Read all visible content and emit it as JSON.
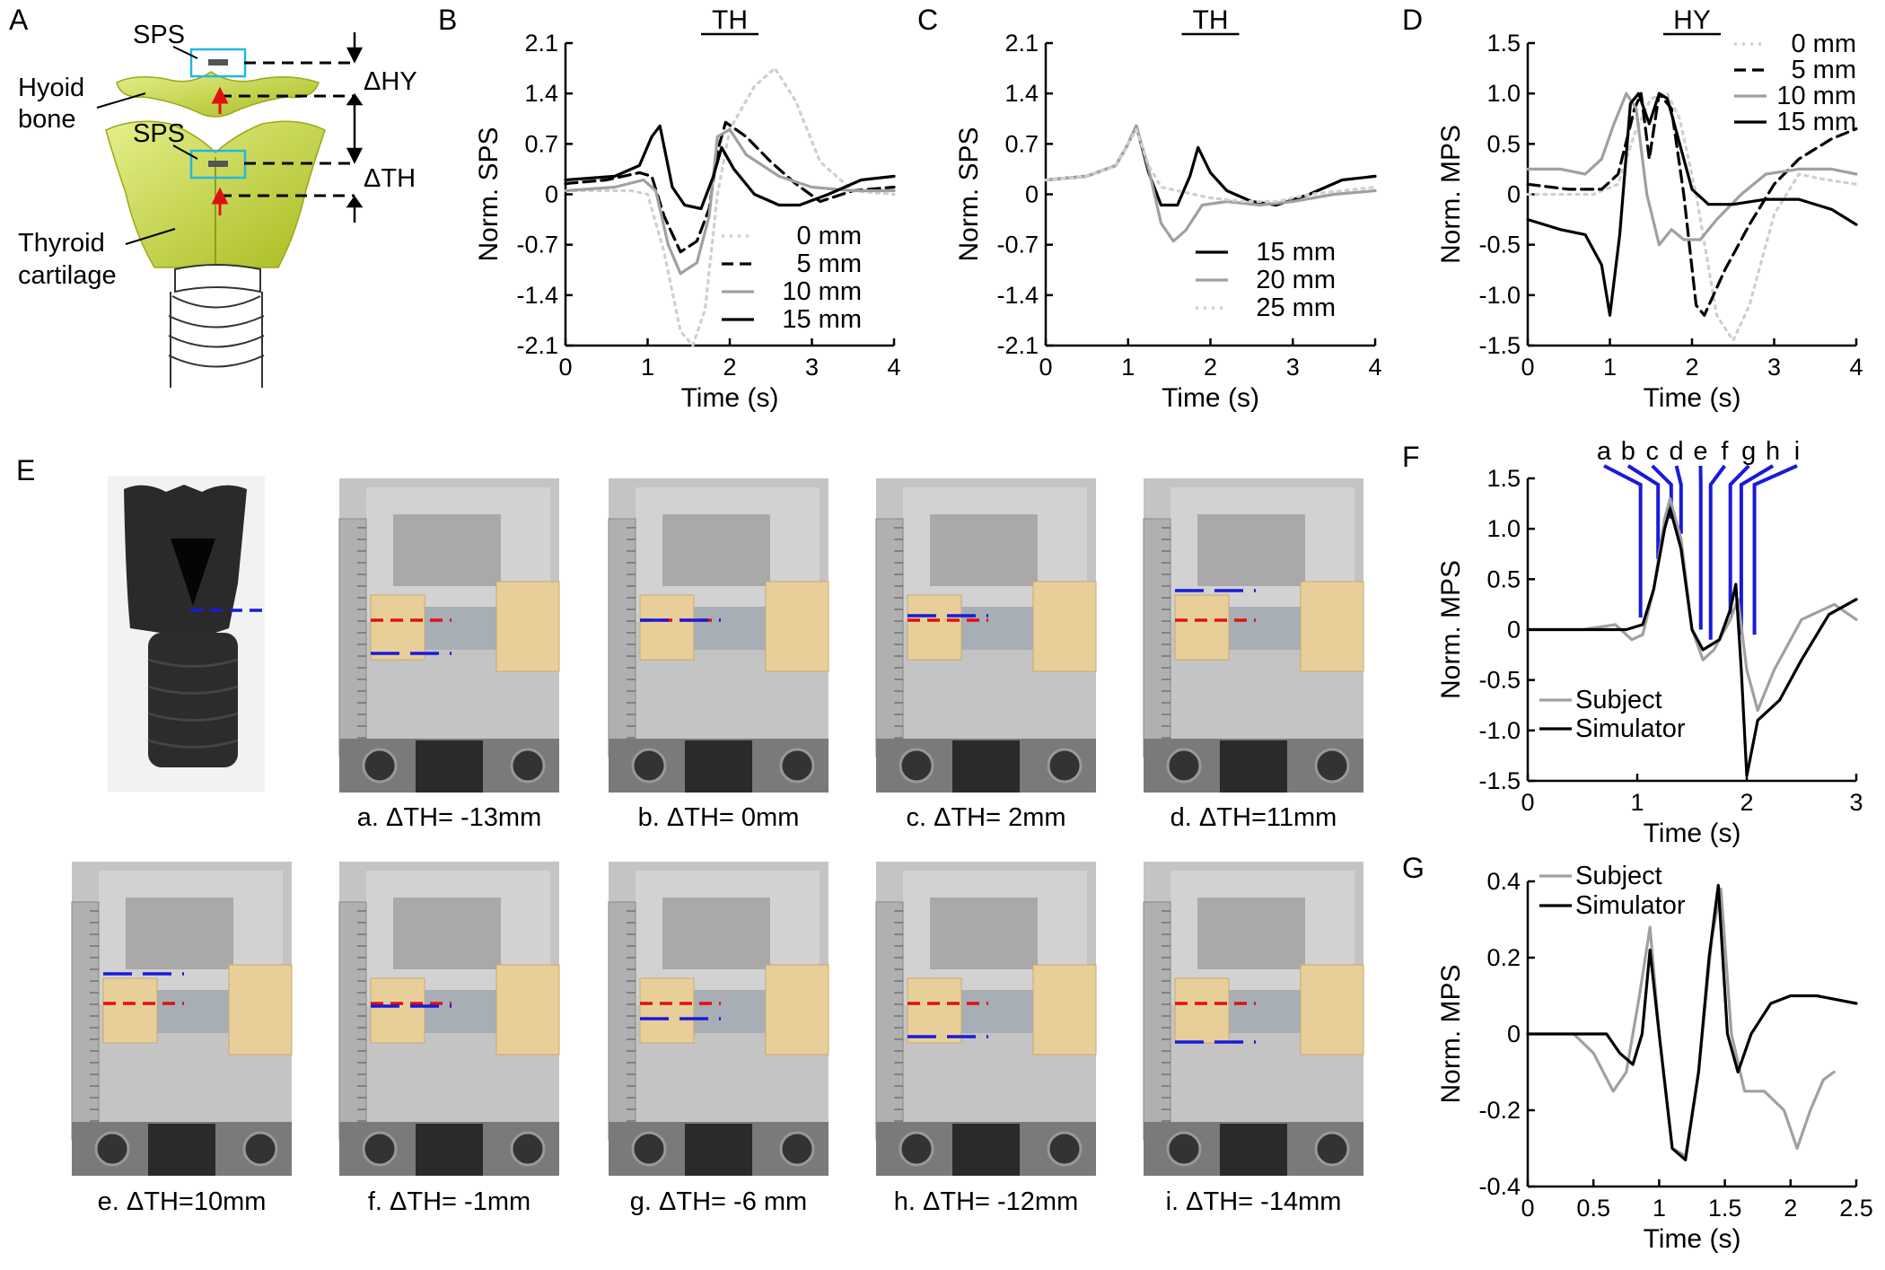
{
  "panels": {
    "A": {
      "letter": "A",
      "labels": {
        "sps_top": "SPS",
        "sps_mid": "SPS",
        "hyoid": [
          "Hyoid",
          "bone"
        ],
        "thyroid": [
          "Thyroid",
          "cartilage"
        ],
        "d_hy": "ΔHY",
        "d_th": "ΔTH"
      }
    },
    "B": {
      "letter": "B"
    },
    "C": {
      "letter": "C"
    },
    "D": {
      "letter": "D"
    },
    "E": {
      "letter": "E",
      "captions": [
        "a. ΔTH= -13mm",
        "b. ΔTH= 0mm",
        "c. ΔTH= 2mm",
        "d. ΔTH=11mm",
        "e. ΔTH=10mm",
        "f. ΔTH= -1mm",
        "g. ΔTH= -6 mm",
        "h. ΔTH= -12mm",
        "i. ΔTH= -14mm"
      ]
    },
    "F": {
      "letter": "F",
      "markers": [
        "a",
        "b",
        "c",
        "d",
        "e",
        "f",
        "g",
        "h",
        "i"
      ]
    },
    "G": {
      "letter": "G"
    }
  },
  "colors": {
    "red_line": "#e01010",
    "blue_line": "#1a1adc",
    "gray": "#a0a0a0",
    "lightgray": "#cfcfcf",
    "black": "#000000",
    "yellow": "#c8d640",
    "cyan": "#22b8e0"
  },
  "chart_data": [
    {
      "id": "B",
      "type": "line",
      "title": "TH",
      "xlabel": "Time (s)",
      "ylabel": "Norm. SPS",
      "xlim": [
        0,
        4
      ],
      "ylim": [
        -2.1,
        2.1
      ],
      "xticks": [
        0,
        1,
        2,
        3,
        4
      ],
      "yticks": [
        2.1,
        1.4,
        0.7,
        0,
        -0.7,
        -1.4,
        -2.1
      ],
      "xtick_labels": [
        "0",
        "1",
        "2",
        "3",
        "4"
      ],
      "ytick_labels": [
        "2.1",
        "1.4",
        "0.7",
        "0",
        "-0.7",
        "-1.4",
        "-2.1"
      ],
      "legend": "bottom-right",
      "series": [
        {
          "name": "0 mm",
          "style": "dotted",
          "color": "#cfcfcf",
          "x": [
            0,
            0.8,
            1.0,
            1.2,
            1.4,
            1.55,
            1.7,
            1.85,
            2.0,
            2.3,
            2.55,
            2.8,
            3.1,
            3.5,
            4.0
          ],
          "y": [
            0.05,
            0.05,
            0.0,
            -0.8,
            -1.9,
            -2.1,
            -1.6,
            0.0,
            0.9,
            1.5,
            1.75,
            1.3,
            0.45,
            0.05,
            0.0
          ]
        },
        {
          "name": "5 mm",
          "style": "dashed",
          "color": "#000000",
          "x": [
            0,
            0.5,
            0.9,
            1.05,
            1.2,
            1.4,
            1.6,
            1.75,
            1.85,
            1.95,
            2.2,
            2.5,
            2.8,
            3.1,
            3.5,
            4.0
          ],
          "y": [
            0.15,
            0.2,
            0.3,
            0.25,
            -0.3,
            -0.8,
            -0.65,
            -0.2,
            0.6,
            1.0,
            0.8,
            0.45,
            0.15,
            -0.1,
            0.05,
            0.1
          ]
        },
        {
          "name": "10 mm",
          "style": "solid",
          "color": "#a0a0a0",
          "x": [
            0,
            0.6,
            0.95,
            1.1,
            1.25,
            1.4,
            1.6,
            1.75,
            1.85,
            2.0,
            2.2,
            2.6,
            3.0,
            3.5,
            4.0
          ],
          "y": [
            0.05,
            0.1,
            0.2,
            0.05,
            -0.7,
            -1.1,
            -0.95,
            -0.3,
            0.8,
            0.9,
            0.55,
            0.25,
            0.1,
            0.05,
            0.05
          ]
        },
        {
          "name": "15 mm",
          "style": "solid",
          "color": "#000000",
          "x": [
            0,
            0.6,
            0.9,
            1.05,
            1.15,
            1.3,
            1.45,
            1.65,
            1.8,
            1.9,
            2.05,
            2.3,
            2.6,
            2.85,
            3.2,
            3.6,
            4.0
          ],
          "y": [
            0.2,
            0.25,
            0.4,
            0.8,
            0.95,
            0.1,
            -0.15,
            -0.2,
            0.25,
            0.65,
            0.35,
            0.0,
            -0.15,
            -0.15,
            0.0,
            0.2,
            0.25
          ]
        }
      ]
    },
    {
      "id": "C",
      "type": "line",
      "title": "TH",
      "xlabel": "Time (s)",
      "ylabel": "Norm. SPS",
      "xlim": [
        0,
        4
      ],
      "ylim": [
        -2.1,
        2.1
      ],
      "xticks": [
        0,
        1,
        2,
        3,
        4
      ],
      "yticks": [
        2.1,
        1.4,
        0.7,
        0,
        -0.7,
        -1.4,
        -2.1
      ],
      "xtick_labels": [
        "0",
        "1",
        "2",
        "3",
        "4"
      ],
      "ytick_labels": [
        "2.1",
        "1.4",
        "0.7",
        "0",
        "-0.7",
        "-1.4",
        "-2.1"
      ],
      "legend": "bottom-right",
      "series": [
        {
          "name": "15 mm",
          "style": "solid",
          "color": "#000000",
          "x": [
            0,
            0.5,
            0.85,
            1.0,
            1.1,
            1.25,
            1.4,
            1.6,
            1.75,
            1.85,
            2.0,
            2.2,
            2.5,
            2.8,
            3.2,
            3.6,
            4.0
          ],
          "y": [
            0.2,
            0.25,
            0.4,
            0.7,
            0.95,
            0.3,
            -0.15,
            -0.15,
            0.25,
            0.65,
            0.3,
            0.05,
            -0.1,
            -0.15,
            0.0,
            0.2,
            0.25
          ]
        },
        {
          "name": "20 mm",
          "style": "solid",
          "color": "#a0a0a0",
          "x": [
            0,
            0.5,
            0.85,
            1.0,
            1.1,
            1.25,
            1.4,
            1.55,
            1.7,
            1.9,
            2.2,
            2.6,
            3.0,
            3.5,
            4.0
          ],
          "y": [
            0.2,
            0.25,
            0.4,
            0.7,
            0.95,
            0.35,
            -0.4,
            -0.65,
            -0.5,
            -0.15,
            -0.1,
            -0.15,
            -0.1,
            0.0,
            0.05
          ]
        },
        {
          "name": "25 mm",
          "style": "dotted",
          "color": "#cfcfcf",
          "x": [
            0,
            0.5,
            0.85,
            1.0,
            1.1,
            1.25,
            1.4,
            1.6,
            1.8,
            2.0,
            2.4,
            2.8,
            3.2,
            3.6,
            4.0
          ],
          "y": [
            0.2,
            0.25,
            0.4,
            0.7,
            0.9,
            0.4,
            0.1,
            0.05,
            0.0,
            -0.05,
            -0.1,
            -0.1,
            0.0,
            0.05,
            0.1
          ]
        }
      ]
    },
    {
      "id": "D",
      "type": "line",
      "title": "HY",
      "xlabel": "Time (s)",
      "ylabel": "Norm. MPS",
      "xlim": [
        0,
        4
      ],
      "ylim": [
        -1.5,
        1.5
      ],
      "xticks": [
        0,
        1,
        2,
        3,
        4
      ],
      "yticks": [
        1.5,
        1.0,
        0.5,
        0,
        -0.5,
        -1.0,
        -1.5
      ],
      "xtick_labels": [
        "0",
        "1",
        "2",
        "3",
        "4"
      ],
      "ytick_labels": [
        "1.5",
        "1.0",
        "0.5",
        "0",
        "-0.5",
        "-1.0",
        "-1.5"
      ],
      "legend": "top-right",
      "series": [
        {
          "name": "0 mm",
          "style": "dotted",
          "color": "#cfcfcf",
          "x": [
            0,
            0.8,
            1.1,
            1.3,
            1.5,
            1.7,
            1.85,
            2.05,
            2.3,
            2.5,
            2.7,
            3.0,
            3.3,
            3.6,
            4.0
          ],
          "y": [
            0.0,
            0.0,
            0.1,
            0.6,
            0.95,
            1.0,
            0.75,
            0.0,
            -1.2,
            -1.45,
            -1.1,
            -0.2,
            0.2,
            0.15,
            0.1
          ]
        },
        {
          "name": "5 mm",
          "style": "dashed",
          "color": "#000000",
          "x": [
            0,
            0.5,
            0.9,
            1.1,
            1.3,
            1.38,
            1.48,
            1.6,
            1.75,
            1.9,
            2.05,
            2.15,
            2.4,
            2.7,
            3.0,
            3.3,
            3.7,
            4.0
          ],
          "y": [
            0.1,
            0.05,
            0.05,
            0.2,
            0.85,
            1.0,
            0.35,
            1.0,
            0.85,
            0.0,
            -1.1,
            -1.2,
            -0.75,
            -0.3,
            0.1,
            0.35,
            0.55,
            0.65
          ]
        },
        {
          "name": "10 mm",
          "style": "solid",
          "color": "#a0a0a0",
          "x": [
            0,
            0.4,
            0.7,
            0.9,
            1.05,
            1.2,
            1.32,
            1.45,
            1.6,
            1.75,
            1.9,
            2.1,
            2.3,
            2.6,
            2.9,
            3.3,
            3.7,
            4.0
          ],
          "y": [
            0.25,
            0.25,
            0.2,
            0.35,
            0.7,
            1.0,
            0.85,
            0.0,
            -0.5,
            -0.35,
            -0.45,
            -0.45,
            -0.25,
            0.0,
            0.2,
            0.25,
            0.25,
            0.2
          ]
        },
        {
          "name": "15 mm",
          "style": "solid",
          "color": "#000000",
          "x": [
            0,
            0.4,
            0.7,
            0.9,
            1.0,
            1.12,
            1.25,
            1.35,
            1.48,
            1.6,
            1.7,
            1.85,
            2.0,
            2.2,
            2.5,
            2.9,
            3.3,
            3.7,
            4.0
          ],
          "y": [
            -0.25,
            -0.35,
            -0.4,
            -0.7,
            -1.2,
            -0.4,
            0.9,
            1.0,
            0.7,
            1.0,
            0.95,
            0.5,
            0.05,
            -0.1,
            -0.1,
            -0.05,
            -0.05,
            -0.15,
            -0.3
          ]
        }
      ]
    },
    {
      "id": "F",
      "type": "line",
      "title": "",
      "xlabel": "Time (s)",
      "ylabel": "Norm. MPS",
      "xlim": [
        0,
        3
      ],
      "ylim": [
        -1.5,
        1.5
      ],
      "xticks": [
        0,
        1,
        2,
        3
      ],
      "yticks": [
        1.5,
        1.0,
        0.5,
        0,
        -0.5,
        -1.0,
        -1.5
      ],
      "xtick_labels": [
        "0",
        "1",
        "2",
        "3"
      ],
      "ytick_labels": [
        "1.5",
        "1.0",
        "0.5",
        "0",
        "-0.5",
        "-1.0",
        "-1.5"
      ],
      "legend": "bottom-left",
      "annotation_labels": [
        "a",
        "b",
        "c",
        "d",
        "e",
        "f",
        "g",
        "h",
        "i"
      ],
      "annotation_x": [
        1.03,
        1.19,
        1.31,
        1.4,
        1.58,
        1.67,
        1.85,
        1.95,
        2.07
      ],
      "annotation_y": [
        0.12,
        0.7,
        1.1,
        0.95,
        0.0,
        -0.1,
        0.15,
        -0.05,
        -0.05
      ],
      "series": [
        {
          "name": "Subject",
          "style": "solid",
          "color": "#a0a0a0",
          "x": [
            0,
            0.5,
            0.8,
            0.95,
            1.05,
            1.15,
            1.25,
            1.3,
            1.4,
            1.5,
            1.6,
            1.7,
            1.85,
            1.92,
            2.0,
            2.1,
            2.25,
            2.5,
            2.8,
            3.0
          ],
          "y": [
            0.0,
            0.0,
            0.05,
            -0.1,
            -0.05,
            0.4,
            1.1,
            1.3,
            0.9,
            0.0,
            -0.3,
            -0.2,
            0.1,
            0.3,
            -0.4,
            -0.8,
            -0.4,
            0.1,
            0.25,
            0.1
          ]
        },
        {
          "name": "Simulator",
          "style": "solid",
          "color": "#000000",
          "x": [
            0,
            0.5,
            0.9,
            1.05,
            1.15,
            1.25,
            1.3,
            1.4,
            1.5,
            1.6,
            1.75,
            1.85,
            1.9,
            1.95,
            2.0,
            2.1,
            2.3,
            2.5,
            2.75,
            3.0
          ],
          "y": [
            0.0,
            0.0,
            0.0,
            0.05,
            0.4,
            1.0,
            1.2,
            0.8,
            0.0,
            -0.2,
            -0.1,
            0.2,
            0.45,
            -0.4,
            -1.45,
            -0.9,
            -0.7,
            -0.3,
            0.15,
            0.3
          ]
        }
      ]
    },
    {
      "id": "G",
      "type": "line",
      "title": "",
      "xlabel": "Time (s)",
      "ylabel": "Norm. MPS",
      "xlim": [
        0,
        2.5
      ],
      "ylim": [
        -0.4,
        0.4
      ],
      "xticks": [
        0,
        0.5,
        1,
        1.5,
        2,
        2.5
      ],
      "yticks": [
        0.4,
        0.2,
        0,
        -0.2,
        -0.4
      ],
      "xtick_labels": [
        "0",
        "0.5",
        "1",
        "1.5",
        "2",
        "2.5"
      ],
      "ytick_labels": [
        "0.4",
        "0.2",
        "0",
        "-0.2",
        "-0.4"
      ],
      "legend": "top-left",
      "series": [
        {
          "name": "Subject",
          "style": "solid",
          "color": "#a0a0a0",
          "x": [
            0.35,
            0.5,
            0.65,
            0.75,
            0.85,
            0.93,
            1.0,
            1.1,
            1.2,
            1.3,
            1.4,
            1.47,
            1.55,
            1.65,
            1.8,
            1.95,
            2.05,
            2.15,
            2.25,
            2.33
          ],
          "y": [
            0.0,
            -0.05,
            -0.15,
            -0.1,
            0.1,
            0.28,
            0.0,
            -0.3,
            -0.32,
            -0.1,
            0.25,
            0.38,
            0.0,
            -0.15,
            -0.15,
            -0.2,
            -0.3,
            -0.2,
            -0.12,
            -0.1
          ]
        },
        {
          "name": "Simulator",
          "style": "solid",
          "color": "#000000",
          "x": [
            0,
            0.3,
            0.5,
            0.6,
            0.7,
            0.8,
            0.87,
            0.93,
            1.0,
            1.1,
            1.2,
            1.3,
            1.38,
            1.45,
            1.52,
            1.6,
            1.7,
            1.85,
            2.0,
            2.2,
            2.5
          ],
          "y": [
            0.0,
            0.0,
            0.0,
            0.0,
            -0.05,
            -0.08,
            0.0,
            0.22,
            0.0,
            -0.3,
            -0.33,
            -0.1,
            0.2,
            0.39,
            0.0,
            -0.1,
            0.0,
            0.08,
            0.1,
            0.1,
            0.08
          ]
        }
      ]
    }
  ]
}
